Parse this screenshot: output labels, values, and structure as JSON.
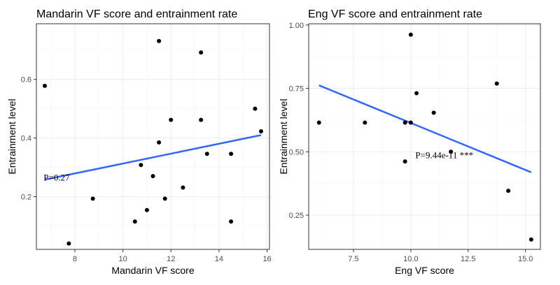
{
  "chart_data": [
    {
      "type": "scatter",
      "title": "Mandarin VF score and entrainment rate",
      "xlabel": "Mandarin VF score",
      "ylabel": "Entrainment level",
      "xlim": [
        6.4,
        16.1
      ],
      "ylim": [
        0.02,
        0.79
      ],
      "xticks": [
        8,
        10,
        12,
        14,
        16
      ],
      "xtick_labels": [
        "8",
        "10",
        "12",
        "14",
        "16"
      ],
      "yticks": [
        0.2,
        0.4,
        0.6
      ],
      "ytick_labels": [
        "0.2",
        "0.4",
        "0.6"
      ],
      "grid": true,
      "points": [
        {
          "x": 6.75,
          "y": 0.578
        },
        {
          "x": 7.75,
          "y": 0.04
        },
        {
          "x": 8.75,
          "y": 0.193
        },
        {
          "x": 10.5,
          "y": 0.115
        },
        {
          "x": 10.75,
          "y": 0.308
        },
        {
          "x": 11.0,
          "y": 0.154
        },
        {
          "x": 11.25,
          "y": 0.27
        },
        {
          "x": 11.5,
          "y": 0.385
        },
        {
          "x": 11.5,
          "y": 0.731
        },
        {
          "x": 11.75,
          "y": 0.193
        },
        {
          "x": 12.0,
          "y": 0.462
        },
        {
          "x": 12.5,
          "y": 0.231
        },
        {
          "x": 13.25,
          "y": 0.462
        },
        {
          "x": 13.25,
          "y": 0.692
        },
        {
          "x": 13.5,
          "y": 0.346
        },
        {
          "x": 14.5,
          "y": 0.346
        },
        {
          "x": 14.5,
          "y": 0.115
        },
        {
          "x": 15.5,
          "y": 0.5
        },
        {
          "x": 15.75,
          "y": 0.423
        }
      ],
      "fit_line": {
        "x": [
          6.75,
          15.75
        ],
        "y": [
          0.258,
          0.41
        ]
      },
      "annotation": {
        "text": "P=0.27",
        "x": 6.7,
        "y": 0.255
      }
    },
    {
      "type": "scatter",
      "title": "Eng VF score and entrainment rate",
      "xlabel": "Eng VF score",
      "ylabel": "Entrainment level",
      "xlim": [
        5.55,
        15.65
      ],
      "ylim": [
        0.115,
        1.005
      ],
      "xticks": [
        7.5,
        10.0,
        12.5,
        15.0
      ],
      "xtick_labels": [
        "7.5",
        "10.0",
        "12.5",
        "15.0"
      ],
      "yticks": [
        0.25,
        0.5,
        0.75,
        1.0
      ],
      "ytick_labels": [
        "0.25",
        "0.50",
        "0.75",
        "1.00"
      ],
      "grid": true,
      "points": [
        {
          "x": 6.0,
          "y": 0.615
        },
        {
          "x": 8.0,
          "y": 0.615
        },
        {
          "x": 9.75,
          "y": 0.615
        },
        {
          "x": 9.75,
          "y": 0.462
        },
        {
          "x": 10.0,
          "y": 0.615
        },
        {
          "x": 10.0,
          "y": 0.962
        },
        {
          "x": 10.25,
          "y": 0.731
        },
        {
          "x": 11.0,
          "y": 0.654
        },
        {
          "x": 11.75,
          "y": 0.5
        },
        {
          "x": 13.75,
          "y": 0.769
        },
        {
          "x": 14.25,
          "y": 0.346
        },
        {
          "x": 15.25,
          "y": 0.154
        }
      ],
      "fit_line": {
        "x": [
          6.0,
          15.25
        ],
        "y": [
          0.762,
          0.419
        ]
      },
      "annotation": {
        "text": "P=9.44e-11 ***",
        "x": 10.2,
        "y": 0.475
      }
    }
  ]
}
